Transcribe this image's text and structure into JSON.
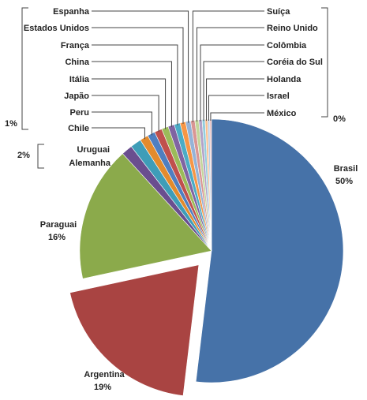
{
  "chart_data": {
    "type": "pie",
    "title": "",
    "slices": [
      {
        "label": "Brasil",
        "value": 50,
        "value_label": "50%",
        "color": "#4672A8",
        "exploded": false
      },
      {
        "label": "Argentina",
        "value": 19,
        "value_label": "19%",
        "color": "#A94442",
        "exploded": true
      },
      {
        "label": "Paraguai",
        "value": 16,
        "value_label": "16%",
        "color": "#8BAA4B",
        "exploded": false
      },
      {
        "label": "Alemanha",
        "value": 1.3,
        "color": "#6A4E8F",
        "exploded": false
      },
      {
        "label": "Uruguai",
        "value": 1.3,
        "color": "#3E9DB8",
        "exploded": false
      },
      {
        "label": "Chile",
        "value": 1.0,
        "color": "#E38B2C",
        "exploded": false
      },
      {
        "label": "Peru",
        "value": 0.9,
        "color": "#4F7FC0",
        "exploded": false
      },
      {
        "label": "Japão",
        "value": 0.9,
        "color": "#C0504D",
        "exploded": false
      },
      {
        "label": "Itália",
        "value": 0.8,
        "color": "#9BBB59",
        "exploded": false
      },
      {
        "label": "China",
        "value": 0.75,
        "color": "#8064A2",
        "exploded": false
      },
      {
        "label": "França",
        "value": 0.7,
        "color": "#4BACC6",
        "exploded": false
      },
      {
        "label": "Estados Unidos",
        "value": 0.65,
        "color": "#F79646",
        "exploded": false
      },
      {
        "label": "Espanha",
        "value": 0.6,
        "color": "#95B3D7",
        "exploded": false
      },
      {
        "label": "Suíça",
        "value": 0.5,
        "color": "#D99694",
        "exploded": false
      },
      {
        "label": "Reino Unido",
        "value": 0.45,
        "color": "#C3D69B",
        "exploded": false
      },
      {
        "label": "Colômbia",
        "value": 0.4,
        "color": "#B3A2C7",
        "exploded": false
      },
      {
        "label": "Coréia do Sul",
        "value": 0.35,
        "color": "#93CDDD",
        "exploded": false
      },
      {
        "label": "Holanda",
        "value": 0.3,
        "color": "#FAC090",
        "exploded": false
      },
      {
        "label": "Israel",
        "value": 0.25,
        "color": "#B9CDE5",
        "exploded": false
      },
      {
        "label": "México",
        "value": 0.2,
        "color": "#E6B9B8",
        "exploded": false
      }
    ],
    "group_labels": {
      "one_percent": "1%",
      "two_percent": "2%",
      "zero_percent": "0%"
    },
    "legend": "none"
  }
}
